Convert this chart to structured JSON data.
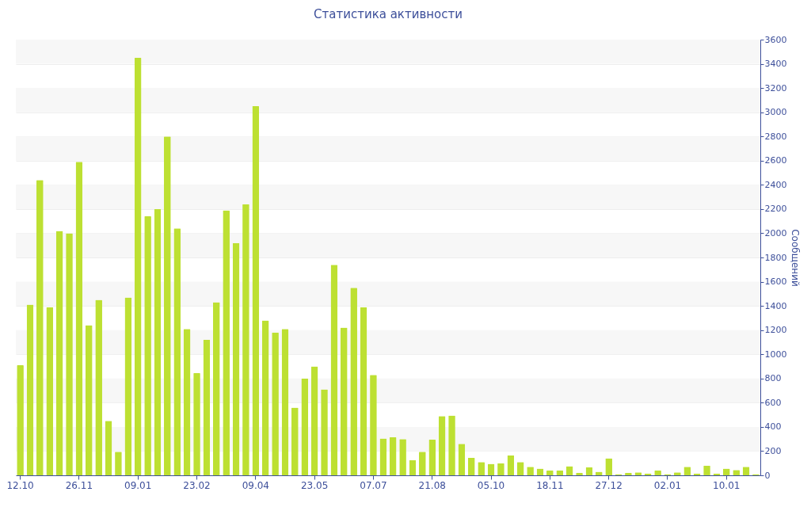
{
  "chart_data": {
    "type": "bar",
    "title": "Статистика активности",
    "ylabel": "Сообщений",
    "color": "#bde032",
    "categories": [
      "12.10",
      null,
      null,
      null,
      null,
      null,
      "26.11",
      null,
      null,
      null,
      null,
      null,
      "09.01",
      null,
      null,
      null,
      null,
      null,
      "23.02",
      null,
      null,
      null,
      null,
      null,
      "09.04",
      null,
      null,
      null,
      null,
      null,
      "23.05",
      null,
      null,
      null,
      null,
      null,
      "07.07",
      null,
      null,
      null,
      null,
      null,
      "21.08",
      null,
      null,
      null,
      null,
      null,
      "05.10",
      null,
      null,
      null,
      null,
      null,
      "18.11",
      null,
      null,
      null,
      null,
      null,
      "27.12",
      null,
      null,
      null,
      null,
      null,
      "02.01",
      null,
      null,
      null,
      null,
      null,
      "10.01",
      null,
      null,
      null
    ],
    "values": [
      910,
      1410,
      2440,
      1390,
      2020,
      2000,
      2590,
      1240,
      1450,
      450,
      195,
      1470,
      3450,
      2140,
      2200,
      2800,
      2040,
      1210,
      845,
      1120,
      1430,
      2190,
      1920,
      2240,
      3050,
      1280,
      1180,
      1210,
      560,
      800,
      900,
      710,
      1740,
      1220,
      1550,
      1390,
      830,
      305,
      315,
      300,
      125,
      195,
      295,
      490,
      495,
      260,
      145,
      110,
      95,
      100,
      165,
      110,
      70,
      55,
      40,
      40,
      75,
      20,
      65,
      30,
      140,
      10,
      20,
      25,
      15,
      40,
      10,
      25,
      70,
      15,
      80,
      15,
      55,
      45,
      70,
      10
    ],
    "ylim": [
      0,
      3600
    ],
    "yticks": [
      0,
      200,
      400,
      600,
      800,
      1000,
      1200,
      1400,
      1600,
      1800,
      2000,
      2200,
      2400,
      2600,
      2800,
      3000,
      3200,
      3400,
      3600
    ],
    "grid": true
  }
}
